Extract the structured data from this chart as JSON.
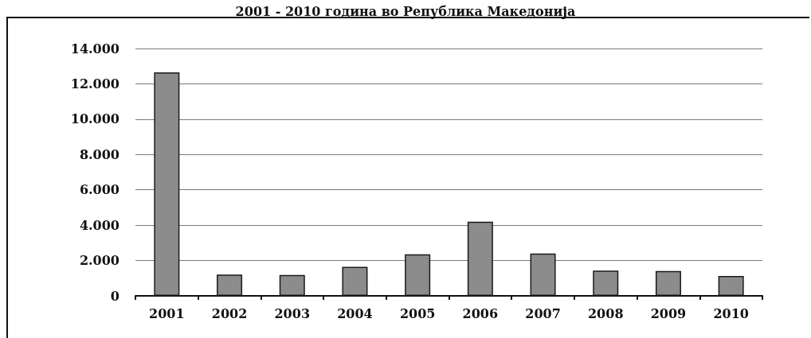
{
  "chart_data": {
    "type": "bar",
    "title": "2001 - 2010 година во Република Македонија",
    "categories": [
      "2001",
      "2002",
      "2003",
      "2004",
      "2005",
      "2006",
      "2007",
      "2008",
      "2009",
      "2010"
    ],
    "values": [
      12650,
      1200,
      1180,
      1640,
      2350,
      4200,
      2400,
      1430,
      1410,
      1130
    ],
    "color": "#8c8c8c",
    "ylim": [
      0,
      14000
    ],
    "yticks": [
      0,
      {
        "value": 2000,
        "label": "2.000"
      },
      {
        "value": 4000,
        "label": "4.000"
      },
      {
        "value": 6000,
        "label": "6.000"
      },
      {
        "value": 8000,
        "label": "8.000"
      },
      {
        "value": 10000,
        "label": "10.000"
      },
      {
        "value": 12000,
        "label": "12.000"
      },
      {
        "value": 14000,
        "label": "14.000"
      }
    ],
    "grid": "y"
  }
}
